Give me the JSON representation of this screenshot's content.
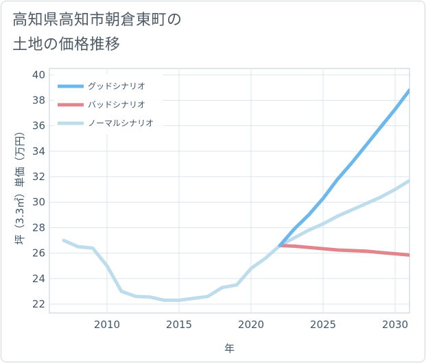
{
  "title_line1": "高知県高知市朝倉東町の",
  "title_line2": "土地の価格推移",
  "chart_data": {
    "type": "line",
    "xlabel": "年",
    "ylabel": "坪（3.3㎡）単価（万円）",
    "xlim": [
      2006,
      2031
    ],
    "ylim": [
      21.3,
      40.5
    ],
    "xticks": [
      2010,
      2015,
      2020,
      2025,
      2030
    ],
    "yticks": [
      22,
      24,
      26,
      28,
      30,
      32,
      34,
      36,
      38,
      40
    ],
    "grid": true,
    "legend_position": "top-left",
    "series": [
      {
        "name": "グッドシナリオ",
        "color": "#6cb8ec",
        "x": [
          2022,
          2023,
          2024,
          2025,
          2026,
          2027,
          2028,
          2029,
          2030,
          2031
        ],
        "y": [
          26.6,
          27.9,
          29.0,
          30.3,
          31.8,
          33.1,
          34.5,
          35.9,
          37.3,
          38.8
        ]
      },
      {
        "name": "バッドシナリオ",
        "color": "#e0868c",
        "x": [
          2022,
          2023,
          2024,
          2025,
          2026,
          2027,
          2028,
          2029,
          2030,
          2031
        ],
        "y": [
          26.6,
          26.55,
          26.45,
          26.35,
          26.25,
          26.2,
          26.15,
          26.05,
          25.95,
          25.85
        ]
      },
      {
        "name": "ノーマルシナリオ",
        "color": "#bddcec",
        "x": [
          2007,
          2008,
          2009,
          2010,
          2011,
          2012,
          2013,
          2014,
          2015,
          2016,
          2017,
          2018,
          2019,
          2020,
          2021,
          2022,
          2023,
          2024,
          2025,
          2026,
          2027,
          2028,
          2029,
          2030,
          2031
        ],
        "y": [
          27.0,
          26.5,
          26.4,
          25.0,
          23.0,
          22.6,
          22.55,
          22.3,
          22.3,
          22.45,
          22.6,
          23.3,
          23.5,
          24.8,
          25.6,
          26.6,
          27.2,
          27.8,
          28.3,
          28.9,
          29.4,
          29.9,
          30.4,
          31.0,
          31.7
        ]
      }
    ]
  }
}
